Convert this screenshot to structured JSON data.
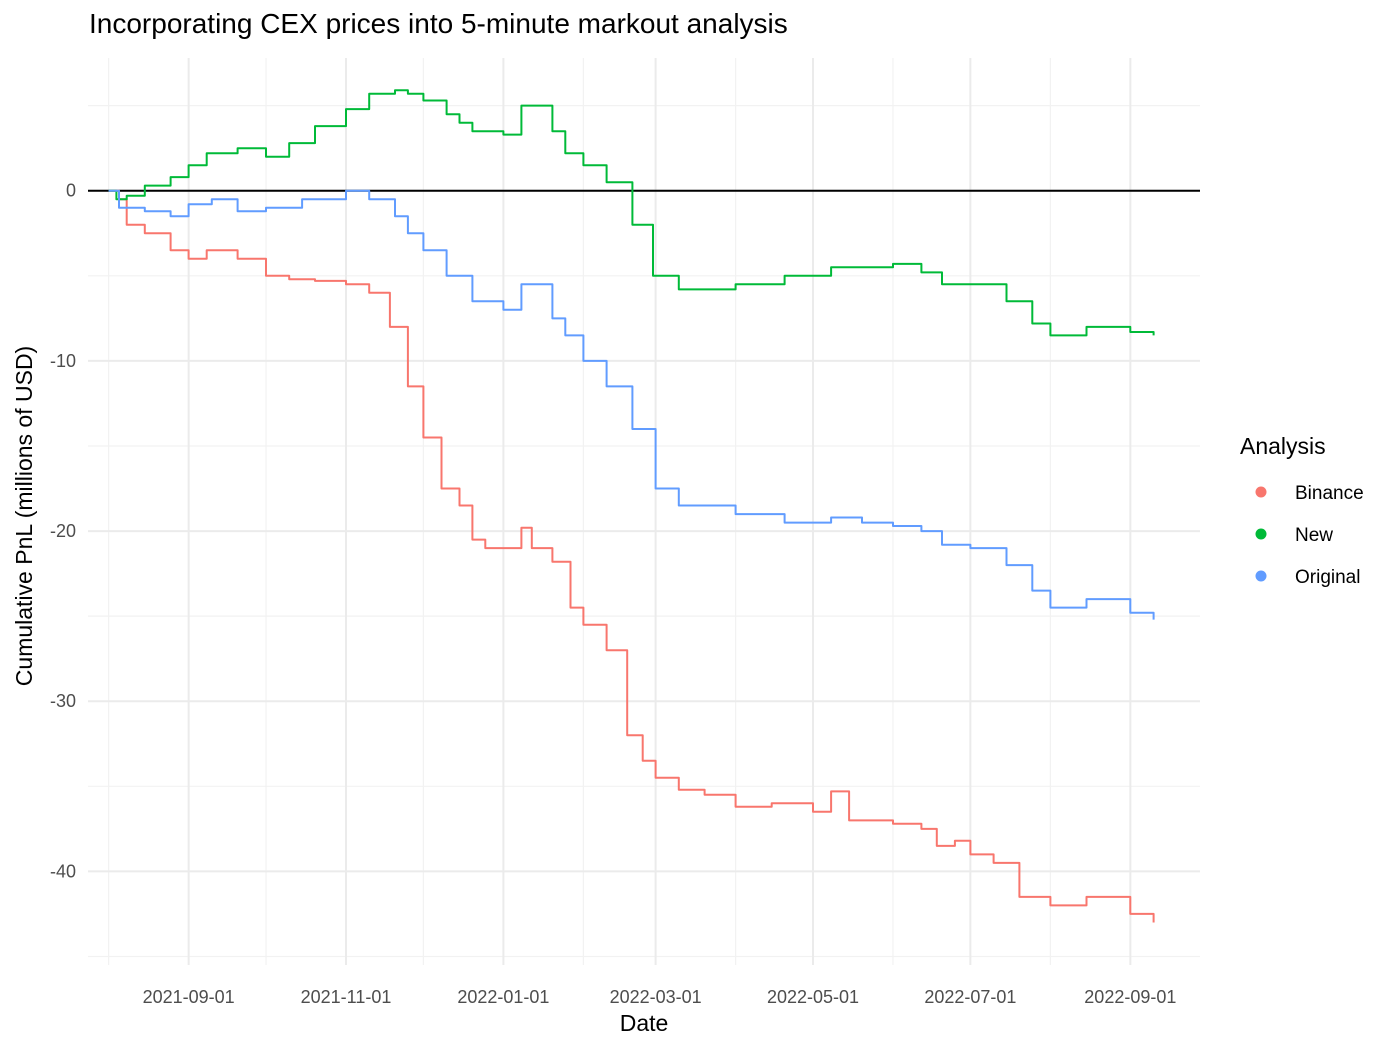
{
  "chart_data": {
    "type": "line",
    "title": "Incorporating CEX prices into 5-minute markout analysis",
    "xlabel": "Date",
    "ylabel": "Cumulative PnL (millions of USD)",
    "x_tick_labels": [
      "2021-09-01",
      "2021-11-01",
      "2022-01-01",
      "2022-03-01",
      "2022-05-01",
      "2022-07-01",
      "2022-09-01"
    ],
    "y_tick_labels": [
      "0",
      "-10",
      "-20",
      "-30",
      "-40"
    ],
    "y_ticks": [
      0,
      -10,
      -20,
      -30,
      -40
    ],
    "xlim": [
      "2021-07-24",
      "2022-09-28"
    ],
    "ylim": [
      -45.5,
      7.8
    ],
    "grid": true,
    "hline": 0,
    "legend": {
      "title": "Analysis",
      "position": "right"
    },
    "series": [
      {
        "name": "Binance",
        "color": "#F8766D",
        "x": [
          "2021-08-01",
          "2021-08-05",
          "2021-08-08",
          "2021-08-15",
          "2021-08-25",
          "2021-09-01",
          "2021-09-08",
          "2021-09-20",
          "2021-10-01",
          "2021-10-10",
          "2021-10-20",
          "2021-11-01",
          "2021-11-10",
          "2021-11-18",
          "2021-11-25",
          "2021-12-01",
          "2021-12-08",
          "2021-12-15",
          "2021-12-20",
          "2021-12-25",
          "2022-01-01",
          "2022-01-08",
          "2022-01-12",
          "2022-01-20",
          "2022-01-27",
          "2022-02-01",
          "2022-02-10",
          "2022-02-18",
          "2022-02-24",
          "2022-03-01",
          "2022-03-10",
          "2022-03-20",
          "2022-04-01",
          "2022-04-15",
          "2022-05-01",
          "2022-05-08",
          "2022-05-15",
          "2022-06-01",
          "2022-06-12",
          "2022-06-18",
          "2022-06-25",
          "2022-07-01",
          "2022-07-10",
          "2022-07-20",
          "2022-08-01",
          "2022-08-15",
          "2022-09-01",
          "2022-09-10"
        ],
        "values": [
          0,
          -0.5,
          -2.0,
          -2.5,
          -3.5,
          -4.0,
          -3.5,
          -4.0,
          -5.0,
          -5.2,
          -5.3,
          -5.5,
          -6.0,
          -8.0,
          -11.5,
          -14.5,
          -17.5,
          -18.5,
          -20.5,
          -21.0,
          -21.0,
          -19.8,
          -21.0,
          -21.8,
          -24.5,
          -25.5,
          -27.0,
          -32.0,
          -33.5,
          -34.5,
          -35.2,
          -35.5,
          -36.2,
          -36.0,
          -36.5,
          -35.3,
          -37.0,
          -37.2,
          -37.5,
          -38.5,
          -38.2,
          -39.0,
          -39.5,
          -41.5,
          -42.0,
          -41.5,
          -42.5,
          -43.0
        ]
      },
      {
        "name": "New",
        "color": "#00BA38",
        "x": [
          "2021-08-01",
          "2021-08-04",
          "2021-08-08",
          "2021-08-15",
          "2021-08-25",
          "2021-09-01",
          "2021-09-08",
          "2021-09-20",
          "2021-10-01",
          "2021-10-10",
          "2021-10-20",
          "2021-11-01",
          "2021-11-10",
          "2021-11-20",
          "2021-11-25",
          "2021-12-01",
          "2021-12-10",
          "2021-12-15",
          "2021-12-20",
          "2022-01-01",
          "2022-01-08",
          "2022-01-20",
          "2022-01-25",
          "2022-02-01",
          "2022-02-10",
          "2022-02-20",
          "2022-02-28",
          "2022-03-10",
          "2022-04-01",
          "2022-04-20",
          "2022-05-08",
          "2022-05-20",
          "2022-06-01",
          "2022-06-12",
          "2022-06-20",
          "2022-07-01",
          "2022-07-15",
          "2022-07-25",
          "2022-08-01",
          "2022-08-15",
          "2022-09-01",
          "2022-09-10"
        ],
        "values": [
          0,
          -0.5,
          -0.3,
          0.3,
          0.8,
          1.5,
          2.2,
          2.5,
          2.0,
          2.8,
          3.8,
          4.8,
          5.7,
          5.9,
          5.7,
          5.3,
          4.5,
          4.0,
          3.5,
          3.3,
          5.0,
          3.5,
          2.2,
          1.5,
          0.5,
          -2.0,
          -5.0,
          -5.8,
          -5.5,
          -5.0,
          -4.5,
          -4.5,
          -4.3,
          -4.8,
          -5.5,
          -5.5,
          -6.5,
          -7.8,
          -8.5,
          -8.0,
          -8.3,
          -8.5
        ]
      },
      {
        "name": "Original",
        "color": "#619CFF",
        "x": [
          "2021-08-01",
          "2021-08-05",
          "2021-08-15",
          "2021-08-25",
          "2021-09-01",
          "2021-09-10",
          "2021-09-20",
          "2021-10-01",
          "2021-10-15",
          "2021-11-01",
          "2021-11-10",
          "2021-11-20",
          "2021-11-25",
          "2021-12-01",
          "2021-12-10",
          "2021-12-20",
          "2022-01-01",
          "2022-01-08",
          "2022-01-20",
          "2022-01-25",
          "2022-02-01",
          "2022-02-10",
          "2022-02-20",
          "2022-03-01",
          "2022-03-10",
          "2022-04-01",
          "2022-04-20",
          "2022-05-08",
          "2022-05-20",
          "2022-06-01",
          "2022-06-12",
          "2022-06-20",
          "2022-07-01",
          "2022-07-15",
          "2022-07-25",
          "2022-08-01",
          "2022-08-15",
          "2022-09-01",
          "2022-09-10"
        ],
        "values": [
          0,
          -1.0,
          -1.2,
          -1.5,
          -0.8,
          -0.5,
          -1.2,
          -1.0,
          -0.5,
          0,
          -0.5,
          -1.5,
          -2.5,
          -3.5,
          -5.0,
          -6.5,
          -7.0,
          -5.5,
          -7.5,
          -8.5,
          -10.0,
          -11.5,
          -14.0,
          -17.5,
          -18.5,
          -19.0,
          -19.5,
          -19.2,
          -19.5,
          -19.7,
          -20.0,
          -20.8,
          -21.0,
          -22.0,
          -23.5,
          -24.5,
          -24.0,
          -24.8,
          -25.2
        ]
      }
    ]
  }
}
